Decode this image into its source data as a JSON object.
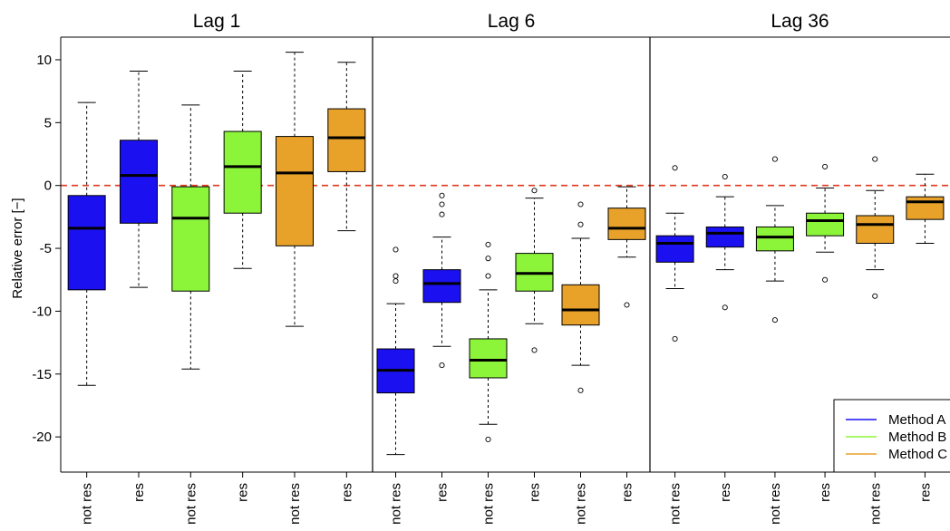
{
  "chart_data": {
    "type": "box",
    "ylabel": "Relative error [−]",
    "ylim": [
      -22.8,
      11.8
    ],
    "yticks": [
      -20,
      -15,
      -10,
      -5,
      0,
      5,
      10
    ],
    "ytick_labels": [
      "-20",
      "-15",
      "-10",
      "-5",
      "0",
      "5",
      "10"
    ],
    "reference_line": {
      "y": 0,
      "color": "#e03a1e",
      "style": "dashed"
    },
    "legend": {
      "placement": "bottom-right",
      "entries": [
        {
          "label": "Method A",
          "color": "#1a10f0"
        },
        {
          "label": "Method B",
          "color": "#8cf53a"
        },
        {
          "label": "Method C",
          "color": "#e8a22a"
        }
      ]
    },
    "panels": [
      {
        "title": "Lag 1",
        "boxes": [
          {
            "category": "not res",
            "method": "Method A",
            "whisker_low": -15.9,
            "q1": -8.3,
            "median": -3.4,
            "q3": -0.8,
            "whisker_high": 6.6,
            "outliers": []
          },
          {
            "category": "res",
            "method": "Method A",
            "whisker_low": -8.1,
            "q1": -3.0,
            "median": 0.8,
            "q3": 3.6,
            "whisker_high": 9.1,
            "outliers": []
          },
          {
            "category": "not res",
            "method": "Method B",
            "whisker_low": -14.6,
            "q1": -8.4,
            "median": -2.6,
            "q3": -0.1,
            "whisker_high": 6.4,
            "outliers": []
          },
          {
            "category": "res",
            "method": "Method B",
            "whisker_low": -6.6,
            "q1": -2.2,
            "median": 1.5,
            "q3": 4.3,
            "whisker_high": 9.1,
            "outliers": []
          },
          {
            "category": "not res",
            "method": "Method C",
            "whisker_low": -11.2,
            "q1": -4.8,
            "median": 1.0,
            "q3": 3.9,
            "whisker_high": 10.6,
            "outliers": []
          },
          {
            "category": "res",
            "method": "Method C",
            "whisker_low": -3.6,
            "q1": 1.1,
            "median": 3.8,
            "q3": 6.1,
            "whisker_high": 9.8,
            "outliers": []
          }
        ]
      },
      {
        "title": "Lag 6",
        "boxes": [
          {
            "category": "not res",
            "method": "Method A",
            "whisker_low": -21.4,
            "q1": -16.5,
            "median": -14.7,
            "q3": -13.0,
            "whisker_high": -9.4,
            "outliers": [
              -5.1,
              -7.2,
              -7.6
            ]
          },
          {
            "category": "res",
            "method": "Method A",
            "whisker_low": -12.8,
            "q1": -9.3,
            "median": -7.8,
            "q3": -6.7,
            "whisker_high": -4.1,
            "outliers": [
              -0.8,
              -1.5,
              -2.3,
              -14.3
            ]
          },
          {
            "category": "not res",
            "method": "Method B",
            "whisker_low": -19.0,
            "q1": -15.3,
            "median": -13.9,
            "q3": -12.2,
            "whisker_high": -8.3,
            "outliers": [
              -4.7,
              -5.8,
              -7.2,
              -20.2
            ]
          },
          {
            "category": "res",
            "method": "Method B",
            "whisker_low": -11.0,
            "q1": -8.4,
            "median": -7.0,
            "q3": -5.4,
            "whisker_high": -1.0,
            "outliers": [
              -0.4,
              -13.1
            ]
          },
          {
            "category": "not res",
            "method": "Method C",
            "whisker_low": -14.3,
            "q1": -11.1,
            "median": -9.9,
            "q3": -7.9,
            "whisker_high": -4.2,
            "outliers": [
              -1.5,
              -3.1,
              -16.3
            ]
          },
          {
            "category": "res",
            "method": "Method C",
            "whisker_low": -5.7,
            "q1": -4.3,
            "median": -3.4,
            "q3": -1.8,
            "whisker_high": -0.1,
            "outliers": [
              -9.5
            ]
          }
        ]
      },
      {
        "title": "Lag 36",
        "boxes": [
          {
            "category": "not res",
            "method": "Method A",
            "whisker_low": -8.2,
            "q1": -6.1,
            "median": -4.6,
            "q3": -4.0,
            "whisker_high": -2.2,
            "outliers": [
              1.4,
              -12.2
            ]
          },
          {
            "category": "res",
            "method": "Method A",
            "whisker_low": -6.7,
            "q1": -4.9,
            "median": -3.8,
            "q3": -3.3,
            "whisker_high": -0.9,
            "outliers": [
              0.7,
              -9.7
            ]
          },
          {
            "category": "not res",
            "method": "Method B",
            "whisker_low": -7.6,
            "q1": -5.2,
            "median": -4.1,
            "q3": -3.3,
            "whisker_high": -1.6,
            "outliers": [
              2.1,
              -10.7
            ]
          },
          {
            "category": "res",
            "method": "Method B",
            "whisker_low": -5.3,
            "q1": -4.0,
            "median": -2.8,
            "q3": -2.2,
            "whisker_high": -0.2,
            "outliers": [
              1.5,
              -7.5
            ]
          },
          {
            "category": "not res",
            "method": "Method C",
            "whisker_low": -6.7,
            "q1": -4.6,
            "median": -3.1,
            "q3": -2.4,
            "whisker_high": -0.4,
            "outliers": [
              2.1,
              -8.8
            ]
          },
          {
            "category": "res",
            "method": "Method C",
            "whisker_low": -4.6,
            "q1": -2.7,
            "median": -1.3,
            "q3": -0.9,
            "whisker_high": 0.9,
            "outliers": []
          }
        ]
      }
    ]
  }
}
